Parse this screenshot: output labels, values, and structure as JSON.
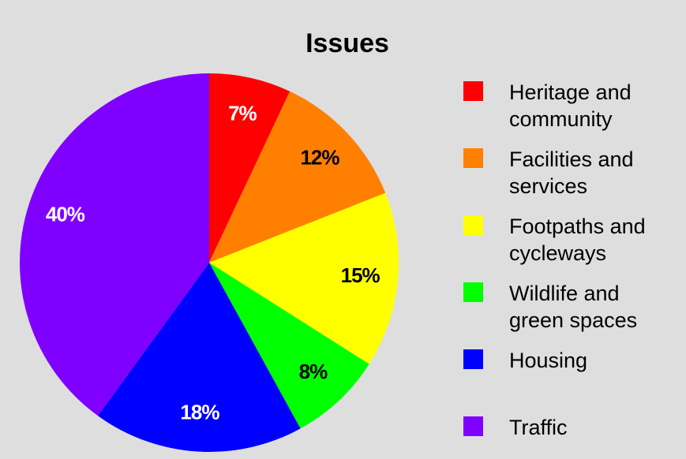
{
  "chart_data": {
    "type": "pie",
    "title": "Issues",
    "categories": [
      "Heritage and community",
      "Facilities and services",
      "Footpaths and cycleways",
      "Wildlife and green spaces",
      "Housing",
      "Traffic"
    ],
    "values": [
      7,
      12,
      15,
      8,
      18,
      40
    ],
    "value_labels": [
      "7%",
      "12%",
      "15%",
      "8%",
      "18%",
      "40%"
    ],
    "colors": [
      "#ff0000",
      "#ff8000",
      "#ffff00",
      "#00ff00",
      "#0000ff",
      "#8000ff"
    ]
  }
}
